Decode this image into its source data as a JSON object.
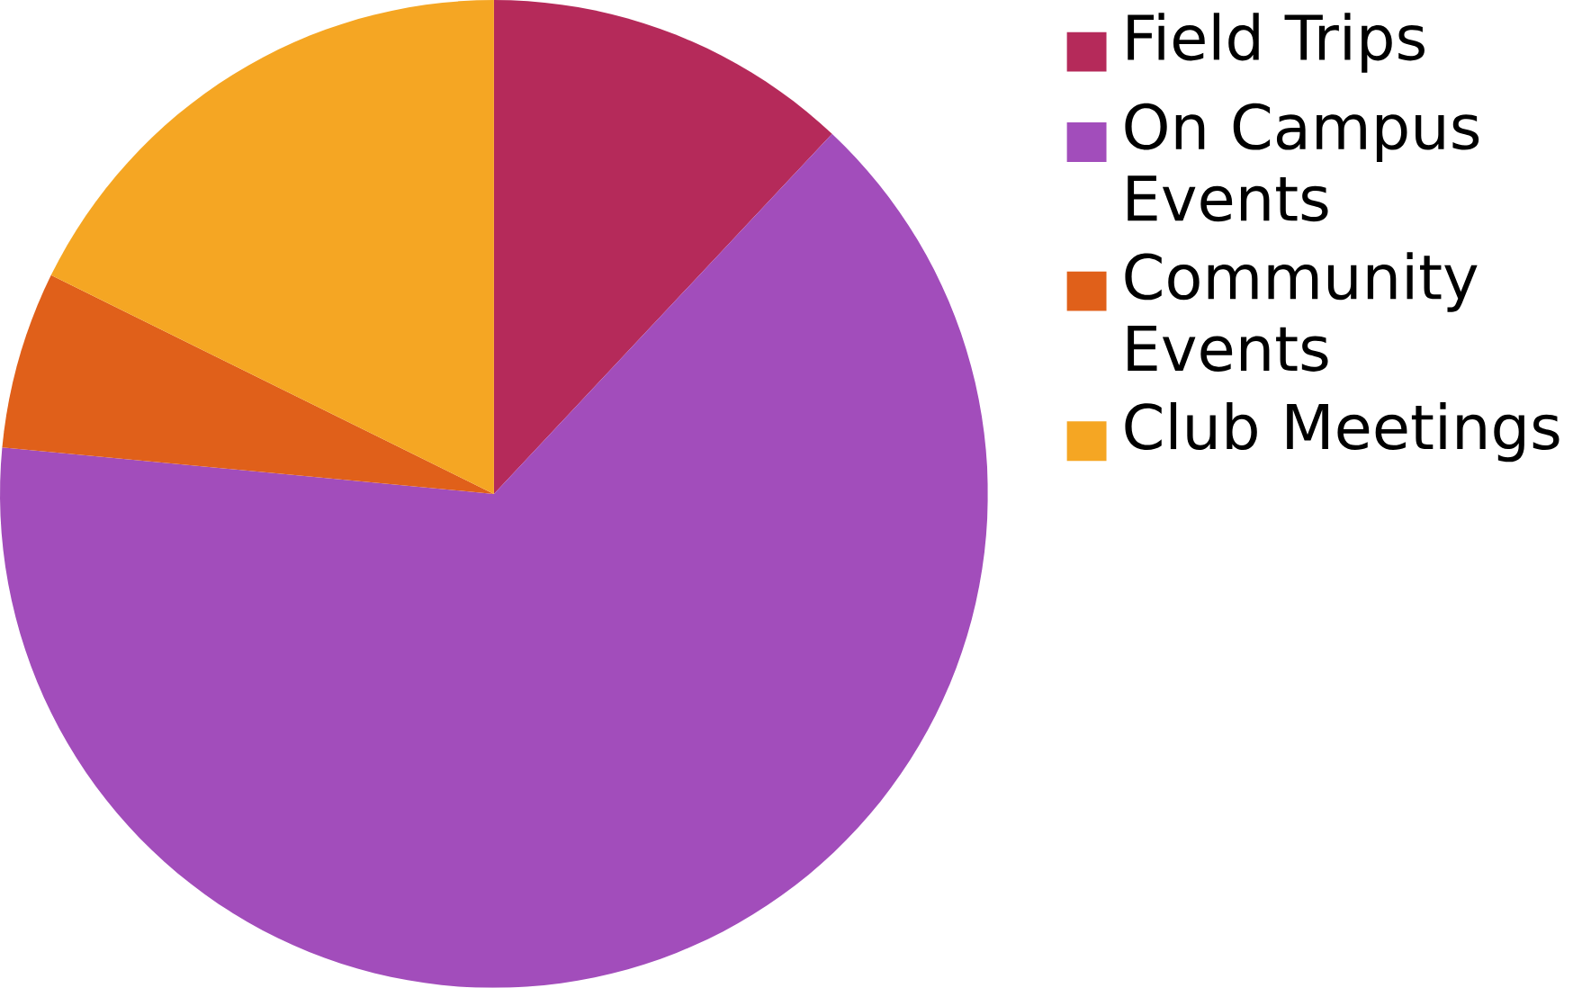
{
  "chart_data": {
    "type": "pie",
    "categories": [
      "Field Trips",
      "On Campus Events",
      "Community Events",
      "Club Meetings"
    ],
    "values": [
      12,
      64.5,
      5.8,
      17.7
    ],
    "colors": [
      "#b52a5a",
      "#a24dbb",
      "#e0601a",
      "#f5a623"
    ],
    "legend": "right"
  }
}
